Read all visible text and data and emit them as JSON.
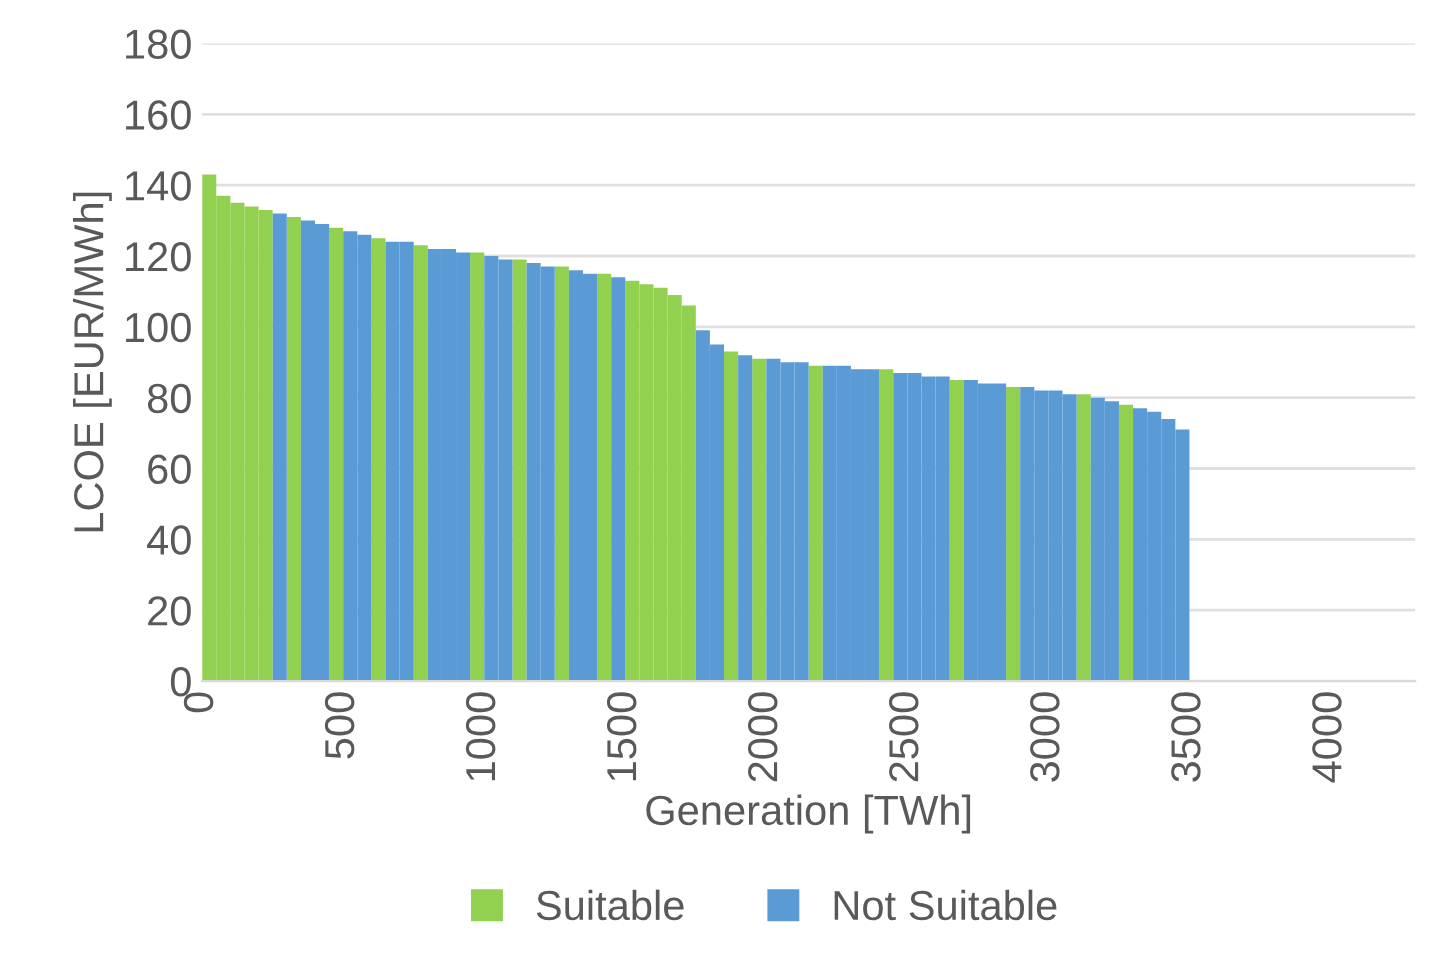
{
  "chart_data": {
    "type": "histogram",
    "xlabel": "Generation [TWh]",
    "ylabel": "LCOE [EUR/MWh]",
    "bins": [
      0,
      50,
      100,
      150,
      200,
      250,
      300,
      350,
      400,
      450,
      500,
      550,
      600,
      650,
      700,
      750,
      800,
      850,
      900,
      950,
      1000,
      1050,
      1100,
      1150,
      1200,
      1250,
      1300,
      1350,
      1400,
      1450,
      1500,
      1550,
      1600,
      1650,
      1700,
      1750,
      1800,
      1850,
      1900,
      1950,
      2000,
      2050,
      2100,
      2150,
      2200,
      2250,
      2300,
      2350,
      2400,
      2450,
      2500,
      2550,
      2600,
      2650,
      2700,
      2750,
      2800,
      2850,
      2900,
      2950,
      3000,
      3050,
      3100,
      3150,
      3200,
      3250,
      3300,
      3350,
      3400,
      3450,
      3500
    ],
    "series": [
      {
        "name": "Suitable",
        "color": "#92d050",
        "values": [
          143,
          137,
          135,
          134,
          133,
          null,
          131,
          null,
          null,
          128,
          null,
          null,
          125,
          null,
          null,
          123,
          null,
          null,
          null,
          121,
          null,
          null,
          119,
          null,
          null,
          117,
          null,
          null,
          115,
          null,
          113,
          112,
          111,
          109,
          106,
          null,
          null,
          93,
          null,
          91,
          null,
          null,
          null,
          89,
          null,
          null,
          null,
          null,
          88,
          null,
          null,
          null,
          null,
          85,
          null,
          null,
          null,
          83,
          null,
          null,
          null,
          null,
          81,
          null,
          null,
          78,
          null,
          null,
          null,
          null
        ]
      },
      {
        "name": "Not Suitable",
        "color": "#5b9bd5",
        "values": [
          null,
          null,
          null,
          null,
          null,
          132,
          null,
          130,
          129,
          null,
          127,
          126,
          null,
          124,
          124,
          null,
          122,
          122,
          121,
          null,
          120,
          119,
          null,
          118,
          117,
          null,
          116,
          115,
          null,
          114,
          null,
          null,
          null,
          null,
          null,
          99,
          95,
          null,
          92,
          null,
          91,
          90,
          90,
          null,
          89,
          89,
          88,
          88,
          null,
          87,
          87,
          86,
          86,
          null,
          85,
          84,
          84,
          null,
          83,
          82,
          82,
          81,
          null,
          80,
          79,
          null,
          77,
          76,
          74,
          71
        ]
      }
    ],
    "xlim": [
      0,
      4300
    ],
    "xticks": [
      0,
      500,
      1000,
      1500,
      2000,
      2500,
      3000,
      3500,
      4000
    ],
    "ylim": [
      0,
      180
    ],
    "yticks": [
      0,
      20,
      40,
      60,
      80,
      100,
      120,
      140,
      160,
      180
    ],
    "grid": "y",
    "legend": "bottom"
  }
}
